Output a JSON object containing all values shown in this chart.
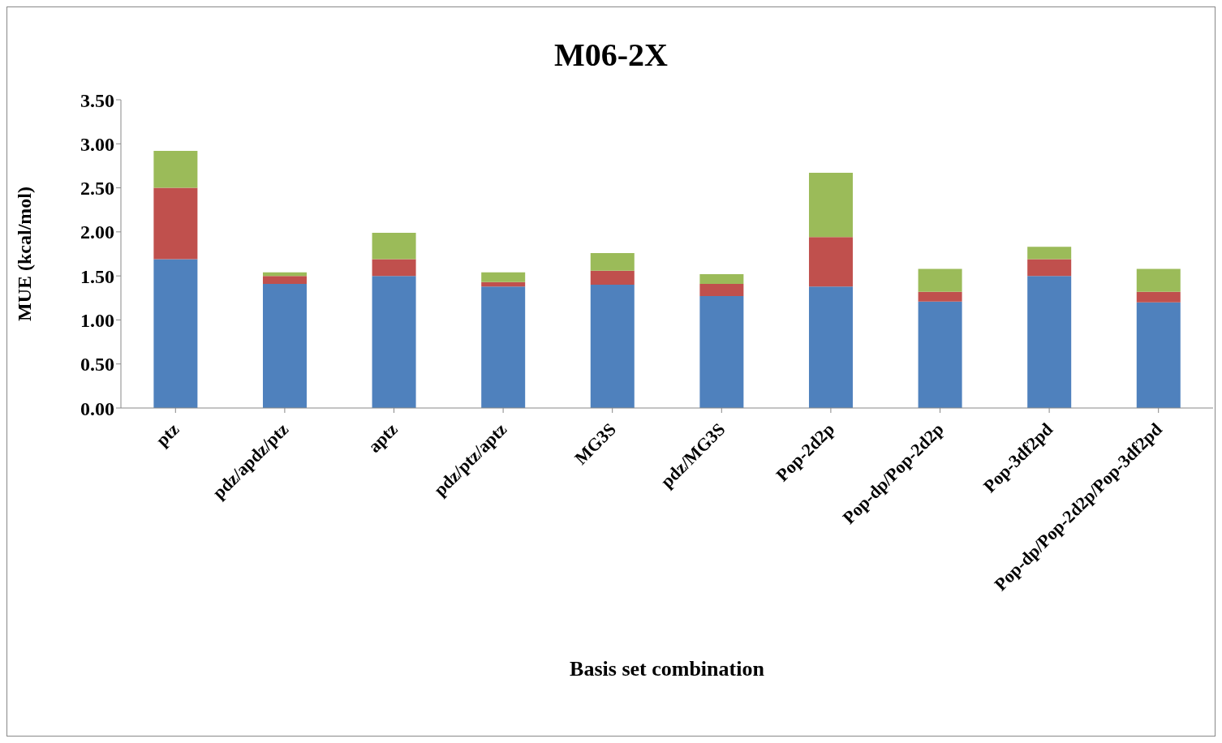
{
  "chart_data": {
    "type": "bar",
    "title": "M06-2X",
    "xlabel": "Basis set combination",
    "ylabel": "MUE (kcal/mol)",
    "stacked": true,
    "grid": false,
    "legend": false,
    "categories": [
      "ptz",
      "pdz/apdz/ptz",
      "aptz",
      "pdz/ptz/aptz",
      "MG3S",
      "pdz/MG3S",
      "Pop-2d2p",
      "Pop-dp/Pop-2d2p",
      "Pop-3df2pd",
      "Pop-dp/Pop-2d2p/Pop-3df2pd"
    ],
    "series": [
      {
        "color": "#4f81bd",
        "values": [
          1.69,
          1.41,
          1.5,
          1.38,
          1.4,
          1.27,
          1.38,
          1.21,
          1.5,
          1.2
        ]
      },
      {
        "color": "#c0504d",
        "values": [
          0.81,
          0.09,
          0.19,
          0.05,
          0.16,
          0.14,
          0.56,
          0.11,
          0.19,
          0.12
        ]
      },
      {
        "color": "#9bbb59",
        "values": [
          0.42,
          0.04,
          0.3,
          0.11,
          0.2,
          0.11,
          0.73,
          0.26,
          0.14,
          0.26
        ]
      }
    ],
    "ylim": [
      0,
      3.5
    ],
    "yticks": [
      {
        "value": 0,
        "label": "0.00"
      },
      {
        "value": 0.5,
        "label": "0.50"
      },
      {
        "value": 1,
        "label": "1.00"
      },
      {
        "value": 1.5,
        "label": "1.50"
      },
      {
        "value": 2,
        "label": "2.00"
      },
      {
        "value": 2.5,
        "label": "2.50"
      },
      {
        "value": 3,
        "label": "3.00"
      },
      {
        "value": 3.5,
        "label": "3.50"
      }
    ]
  }
}
